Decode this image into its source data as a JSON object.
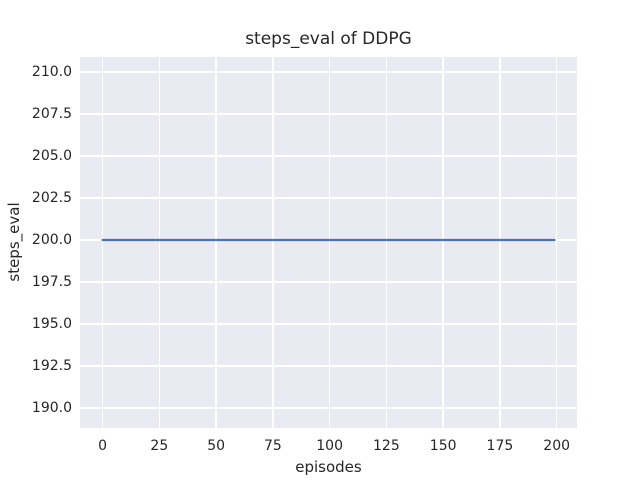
{
  "chart_data": {
    "type": "line",
    "title": "steps_eval of DDPG",
    "xlabel": "episodes",
    "ylabel": "steps_eval",
    "x_ticks": [
      0,
      25,
      50,
      75,
      100,
      125,
      150,
      175,
      200
    ],
    "x_tick_labels": [
      "0",
      "25",
      "50",
      "75",
      "100",
      "125",
      "150",
      "175",
      "200"
    ],
    "y_ticks": [
      210.0,
      207.5,
      205.0,
      202.5,
      200.0,
      197.5,
      195.0,
      192.5,
      190.0
    ],
    "y_tick_labels": [
      "210.0",
      "207.5",
      "205.0",
      "202.5",
      "200.0",
      "197.5",
      "195.0",
      "192.5",
      "190.0"
    ],
    "xlim": [
      -9.95,
      208.95
    ],
    "ylim": [
      188.8,
      210.9
    ],
    "grid": true,
    "legend_position": "none",
    "plot_background": "#EAEAF2",
    "grid_color": "#FFFFFF",
    "text_color": "#262626",
    "series": [
      {
        "name": "DDPG steps_eval",
        "color": "#4C72B0",
        "x": [
          0,
          199
        ],
        "y": [
          200,
          200
        ],
        "note": "constant value 200 across episodes 0-199"
      }
    ]
  }
}
